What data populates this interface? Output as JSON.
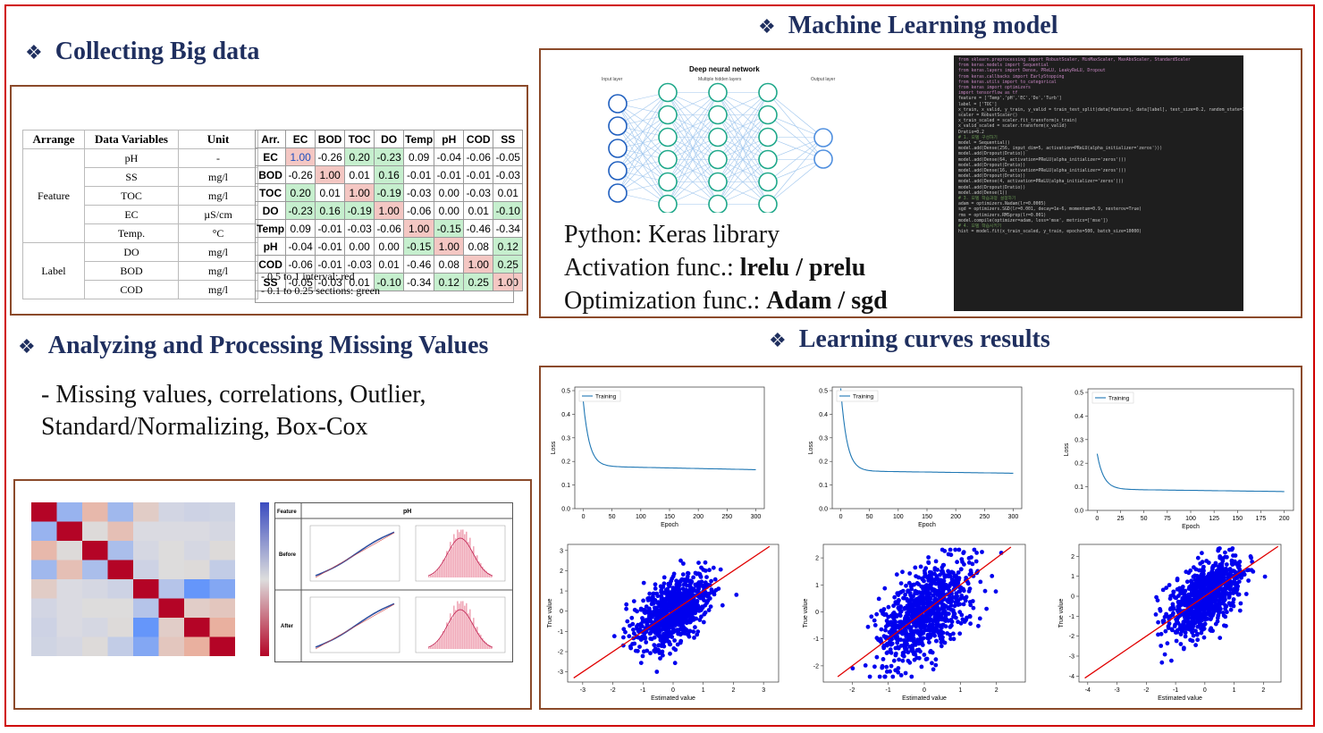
{
  "sections": {
    "collect": "Collecting Big data",
    "ml": "Machine Learning model",
    "missing": "Analyzing and Processing Missing Values",
    "curves": "Learning curves results"
  },
  "variables_table": {
    "headers": [
      "Arrange",
      "Data Variables",
      "Unit"
    ],
    "feature_label": "Feature",
    "label_label": "Label",
    "feature_rows": [
      [
        "pH",
        "-"
      ],
      [
        "SS",
        "mg/l"
      ],
      [
        "TOC",
        "mg/l"
      ],
      [
        "EC",
        "µS/cm"
      ],
      [
        "Temp.",
        "°C"
      ]
    ],
    "label_rows": [
      [
        "DO",
        "mg/l"
      ],
      [
        "BOD",
        "mg/l"
      ],
      [
        "COD",
        "mg/l"
      ]
    ]
  },
  "correlation_table": {
    "corner": "Arr.",
    "vars": [
      "EC",
      "BOD",
      "TOC",
      "DO",
      "Temp",
      "pH",
      "COD",
      "SS"
    ],
    "values": [
      [
        "1.00",
        "-0.26",
        "0.20",
        "-0.23",
        "0.09",
        "-0.04",
        "-0.06",
        "-0.05"
      ],
      [
        "-0.26",
        "1.00",
        "0.01",
        "0.16",
        "-0.01",
        "-0.01",
        "-0.01",
        "-0.03"
      ],
      [
        "0.20",
        "0.01",
        "1.00",
        "-0.19",
        "-0.03",
        "0.00",
        "-0.03",
        "0.01"
      ],
      [
        "-0.23",
        "0.16",
        "-0.19",
        "1.00",
        "-0.06",
        "0.00",
        "0.01",
        "-0.10"
      ],
      [
        "0.09",
        "-0.01",
        "-0.03",
        "-0.06",
        "1.00",
        "-0.15",
        "-0.46",
        "-0.34"
      ],
      [
        "-0.04",
        "-0.01",
        "0.00",
        "0.00",
        "-0.15",
        "1.00",
        "0.08",
        "0.12"
      ],
      [
        "-0.06",
        "-0.01",
        "-0.03",
        "0.01",
        "-0.46",
        "0.08",
        "1.00",
        "0.25"
      ],
      [
        "-0.05",
        "-0.03",
        "0.01",
        "-0.10",
        "-0.34",
        "0.12",
        "0.25",
        "1.00"
      ]
    ],
    "notes": [
      "- 0.5 to 1 interval: red",
      "- 0.1 to 0.25 sections: green"
    ],
    "colors": {
      "red": "#f4c7c3",
      "green": "#c6efce"
    }
  },
  "missing_text": [
    "- Missing values, correlations, Outlier,",
    "Standard/Normalizing, Box-Cox"
  ],
  "ml_text": {
    "line1": "Python: Keras library",
    "line2_prefix": "Activation func.: ",
    "line2_bold": "lrelu / prelu",
    "line3_prefix": "Optimization func.: ",
    "line3_bold": "Adam / sgd"
  },
  "nn": {
    "title": "Deep neural network",
    "input": "Input layer",
    "hidden": "Multiple hidden layers",
    "output": "Output layer"
  },
  "code_lines": [
    "from sklearn.preprocessing import RobustScaler, MinMaxScaler, MaxAbsScaler, StandardScaler",
    "",
    "from keras.models import Sequential",
    "from keras.layers import Dense, PReLU, LeakyReLU, Dropout",
    "from keras.callbacks import EarlyStopping",
    "from keras.utils import to_categorical",
    "from keras import optimizers",
    "import tensorflow as tf",
    "",
    "feature = ['Temp','pH','EC','Do','Turb']",
    "label = ['TOC']",
    "x_train, x_valid, y_train, y_valid = train_test_split(data[feature], data[label], test_size=0.2, random_state=1)",
    "",
    "scaler = RobustScaler()",
    "x_train_scaled = scaler.fit_transform(x_train)",
    "x_valid_scaled = scaler.transform(x_valid)",
    "",
    "Dratio=0.2",
    "",
    "# 1. 모델 구성하기",
    "model = Sequential()",
    "model.add(Dense(256, input_dim=5, activation=PReLU(alpha_initializer='zeros')))",
    "model.add(Dropout(Dratio))",
    "",
    "model.add(Dense(64, activation=PReLU(alpha_initializer='zeros')))",
    "model.add(Dropout(Dratio))",
    "",
    "model.add(Dense(16, activation=PReLU(alpha_initializer='zeros')))",
    "model.add(Dropout(Dratio))",
    "",
    "model.add(Dense(4, activation=PReLU(alpha_initializer='zeros')))",
    "model.add(Dropout(Dratio))",
    "",
    "model.add(Dense(1))",
    "",
    "# 3. 모델 학습과정 설정하기",
    "adam = optimizers.Nadam(lr=0.0005)",
    "sgd = optimizers.SGD(lr=0.001, decay=1e-6, momentum=0.9, nesterov=True)",
    "rms = optimizers.RMSprop(lr=0.001)",
    "model.compile(optimizer=adam, loss='mse', metrics=['mse'])",
    "",
    "# 4. 모델 학습시키기",
    "hist = model.fit(x_train_scaled, y_train, epochs=500, batch_size=10000)"
  ],
  "feature_panel": {
    "feature": "Feature",
    "name": "pH",
    "before": "Before",
    "after": "After"
  },
  "loss_charts": [
    {
      "legend": "Training",
      "xlabel": "Epoch",
      "ylabel": "Loss",
      "xticks": [
        0,
        50,
        100,
        150,
        200,
        250,
        300
      ],
      "yticks": [
        "0.0",
        "0.1",
        "0.2",
        "0.3",
        "0.4",
        "0.5"
      ],
      "xmax": 300,
      "start": 0.44,
      "end": 0.165
    },
    {
      "legend": "Training",
      "xlabel": "Epoch",
      "ylabel": "Loss",
      "xticks": [
        0,
        50,
        100,
        150,
        200,
        250,
        300
      ],
      "yticks": [
        "0.0",
        "0.1",
        "0.2",
        "0.3",
        "0.4",
        "0.5"
      ],
      "xmax": 300,
      "start": 0.5,
      "end": 0.15
    },
    {
      "legend": "Training",
      "xlabel": "Epoch",
      "ylabel": "Loss",
      "xticks": [
        0,
        25,
        50,
        75,
        100,
        125,
        150,
        175,
        200
      ],
      "yticks": [
        "0.0",
        "0.1",
        "0.2",
        "0.3",
        "0.4",
        "0.5"
      ],
      "xmax": 200,
      "start": 0.23,
      "end": 0.08
    }
  ],
  "scatter_charts": [
    {
      "xlabel": "Estimated value",
      "ylabel": "True value",
      "xticks": [
        -3,
        -2,
        -1,
        0,
        1,
        2,
        3
      ],
      "yticks": [
        -3,
        -2,
        -1,
        0,
        1,
        2,
        3
      ],
      "xlim": [
        -3.5,
        3.5
      ],
      "ylim": [
        -3.5,
        3.3
      ]
    },
    {
      "xlabel": "Estimated value",
      "ylabel": "True value",
      "xticks": [
        -2,
        -1,
        0,
        1,
        2
      ],
      "yticks": [
        -2,
        -1,
        0,
        1,
        2
      ],
      "xlim": [
        -2.8,
        2.8
      ],
      "ylim": [
        -2.6,
        2.5
      ]
    },
    {
      "xlabel": "Estimated value",
      "ylabel": "True value",
      "xticks": [
        -4,
        -3,
        -2,
        -1,
        0,
        1,
        2
      ],
      "yticks": [
        -4,
        -3,
        -2,
        -1,
        0,
        1,
        2
      ],
      "xlim": [
        -4.3,
        2.6
      ],
      "ylim": [
        -4.3,
        2.6
      ]
    }
  ]
}
